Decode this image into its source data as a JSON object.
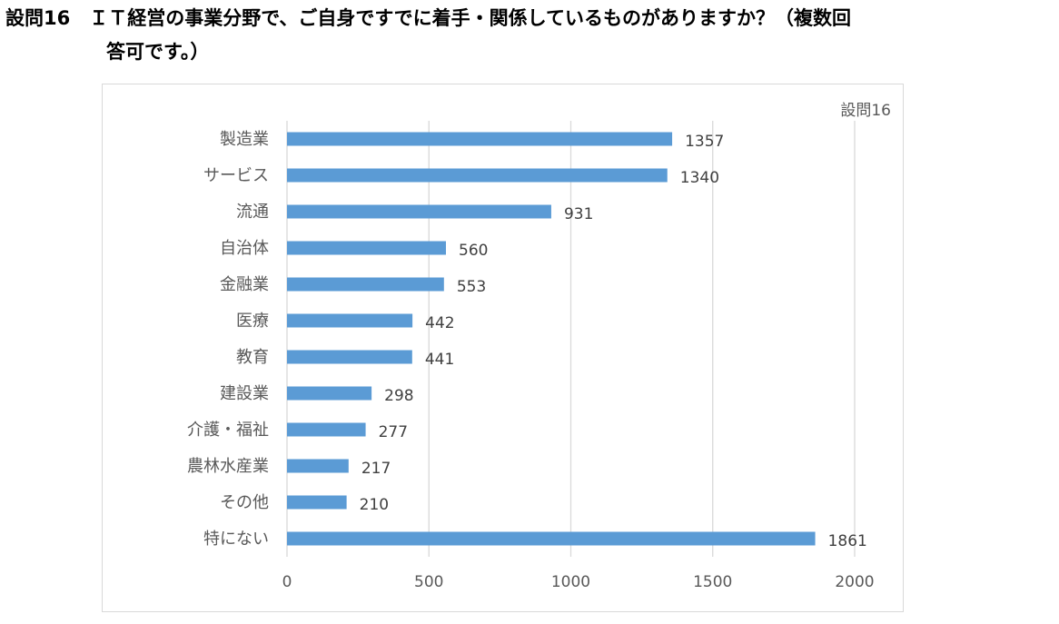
{
  "question": {
    "line1": "設問16　ＩＴ経営の事業分野で、ご自身ですでに着手・関係しているものがありますか？（複数回",
    "line2": "答可です。）"
  },
  "chart_data": {
    "type": "bar",
    "orientation": "horizontal",
    "categories": [
      "製造業",
      "サービス",
      "流通",
      "自治体",
      "金融業",
      "医療",
      "教育",
      "建設業",
      "介護・福祉",
      "農林水産業",
      "その他",
      "特にない"
    ],
    "series": [
      {
        "name": "設問16",
        "values": [
          1357,
          1340,
          931,
          560,
          553,
          442,
          441,
          298,
          277,
          217,
          210,
          1861
        ]
      }
    ],
    "xlim": [
      0,
      2000
    ],
    "xticks": [
      0,
      500,
      1000,
      1500,
      2000
    ],
    "grid": true,
    "legend": "top-right",
    "bar_color": "#5b9bd5"
  }
}
